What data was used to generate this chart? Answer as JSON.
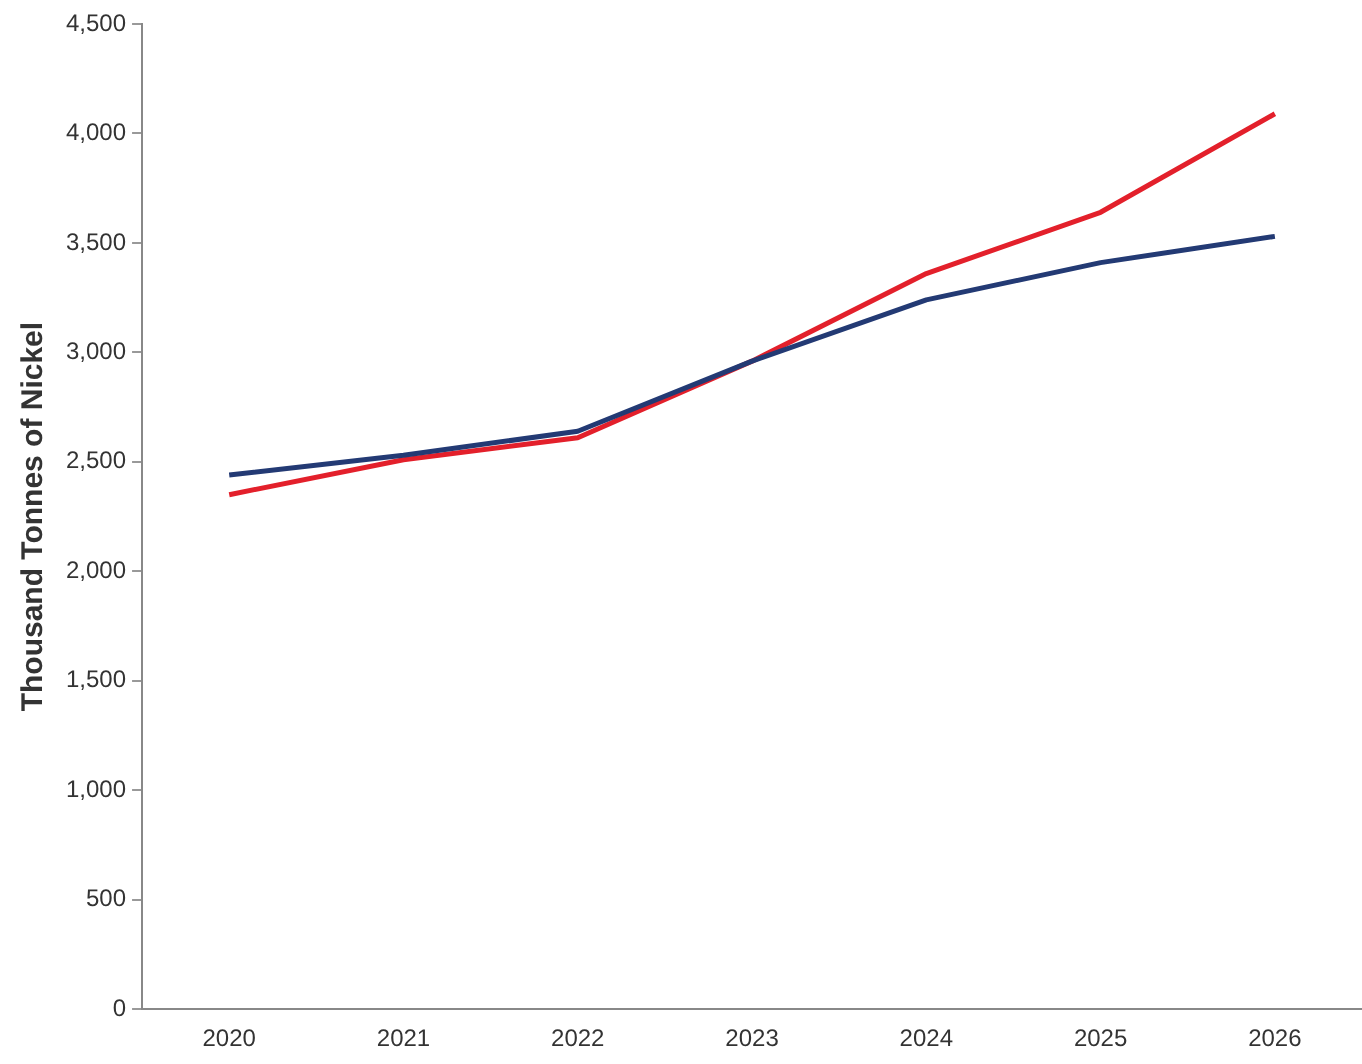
{
  "chart_data": {
    "type": "line",
    "ylabel": "Thousand Tonnes of Nickel",
    "categories": [
      "2020",
      "2021",
      "2022",
      "2023",
      "2024",
      "2025",
      "2026"
    ],
    "series": [
      {
        "color": "#233a74",
        "values": [
          2440,
          2530,
          2640,
          2960,
          3240,
          3410,
          3530
        ]
      },
      {
        "color": "#e3202b",
        "values": [
          2350,
          2510,
          2610,
          2960,
          3360,
          3640,
          4090
        ]
      }
    ],
    "ylim": [
      0,
      4500
    ],
    "yticks": [
      {
        "value": 0,
        "label": "0"
      },
      {
        "value": 500,
        "label": "500"
      },
      {
        "value": 1000,
        "label": "1,000"
      },
      {
        "value": 1500,
        "label": "1,500"
      },
      {
        "value": 2000,
        "label": "2,000"
      },
      {
        "value": 2500,
        "label": "2,500"
      },
      {
        "value": 3000,
        "label": "3,000"
      },
      {
        "value": 3500,
        "label": "3,500"
      },
      {
        "value": 4000,
        "label": "4,000"
      },
      {
        "value": 4500,
        "label": "4,500"
      }
    ],
    "grid": false,
    "legend": false,
    "marker": "none",
    "line_style": "solid"
  }
}
